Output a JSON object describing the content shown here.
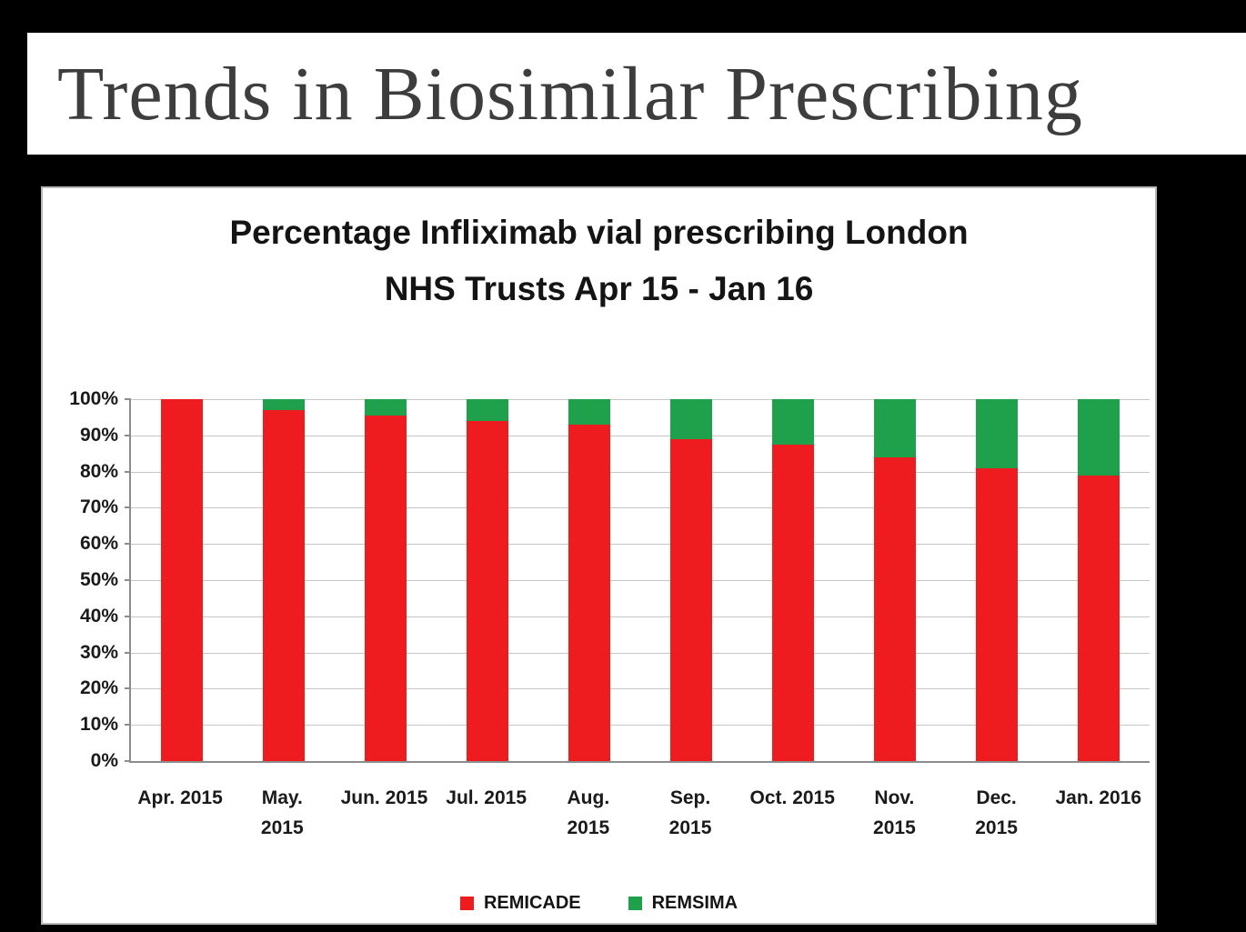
{
  "slide": {
    "title": "Trends in Biosimilar Prescribing"
  },
  "chart_data": {
    "type": "bar",
    "variant": "stacked-100-percent",
    "title": "Percentage Infliximab vial prescribing London NHS Trusts Apr 15 - Jan 16",
    "title_lines": [
      "Percentage Infliximab vial prescribing London",
      "NHS Trusts Apr 15 - Jan 16"
    ],
    "categories": [
      "Apr. 2015",
      "May. 2015",
      "Jun. 2015",
      "Jul. 2015",
      "Aug. 2015",
      "Sep. 2015",
      "Oct. 2015",
      "Nov. 2015",
      "Dec. 2015",
      "Jan. 2016"
    ],
    "category_label_lines": [
      [
        "Apr. 2015"
      ],
      [
        "May.",
        "2015"
      ],
      [
        "Jun. 2015"
      ],
      [
        "Jul. 2015"
      ],
      [
        "Aug.",
        "2015"
      ],
      [
        "Sep.",
        "2015"
      ],
      [
        "Oct. 2015"
      ],
      [
        "Nov.",
        "2015"
      ],
      [
        "Dec.",
        "2015"
      ],
      [
        "Jan. 2016"
      ]
    ],
    "series": [
      {
        "name": "REMICADE",
        "color": "#ee1c1e",
        "values": [
          100,
          97,
          95.5,
          94,
          93,
          89,
          87.5,
          84,
          81,
          79
        ]
      },
      {
        "name": "REMSIMA",
        "color": "#1fa04a",
        "values": [
          0,
          3,
          4.5,
          6,
          7,
          11,
          12.5,
          16,
          19,
          21
        ]
      }
    ],
    "xlabel": "",
    "ylabel": "",
    "ylim": [
      0,
      100
    ],
    "y_tick_step": 10,
    "y_tick_labels": [
      "0%",
      "10%",
      "20%",
      "30%",
      "40%",
      "50%",
      "60%",
      "70%",
      "80%",
      "90%",
      "100%"
    ],
    "grid": true,
    "legend_position": "bottom"
  },
  "colors": {
    "remicade_red": "#ee1c1e",
    "remsima_green": "#1fa04a",
    "slide_background": "#000000",
    "panel_background": "#ffffff",
    "title_text": "#3d3d3d"
  }
}
